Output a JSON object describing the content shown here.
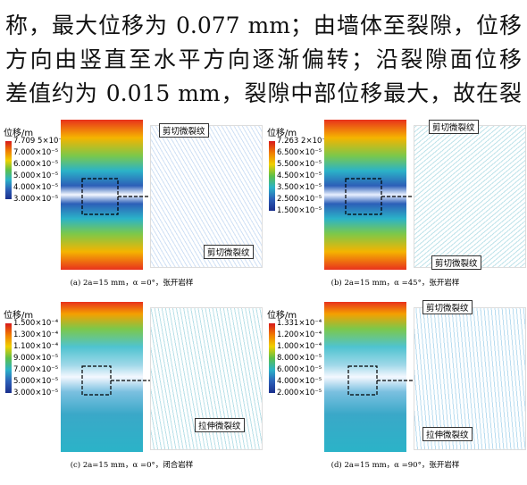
{
  "body_text": [
    "称，最大位移为 0.077 mm；由墙体至裂隙，位移",
    "方向由竖直至水平方向逐渐偏转；沿裂隙面位移",
    "差值约为 0.015 mm，裂隙中部位移最大，故在裂"
  ],
  "figures": [
    {
      "legend_title": "位移/m",
      "legend_ticks": [
        "7.709 5×10⁻⁵",
        "7.000×10⁻⁵",
        "6.000×10⁻⁵",
        "5.000×10⁻⁵",
        "4.000×10⁻⁵",
        "3.000×10⁻⁵"
      ],
      "annotations": [
        "剪切微裂纹",
        "剪切微裂纹"
      ],
      "caption": "(a) 2a=15 mm，α =0°，张开岩样"
    },
    {
      "legend_title": "位移/m",
      "legend_ticks": [
        "7.263 2×10⁻⁵",
        "6.500×10⁻⁵",
        "5.500×10⁻⁵",
        "4.500×10⁻⁵",
        "3.500×10⁻⁵",
        "2.500×10⁻⁵",
        "1.500×10⁻⁵"
      ],
      "annotations": [
        "剪切微裂纹",
        "剪切微裂纹"
      ],
      "caption": "(b) 2a=15 mm，α =45°，张开岩样"
    },
    {
      "legend_title": "位移/m",
      "legend_ticks": [
        "1.500×10⁻⁴",
        "1.300×10⁻⁴",
        "1.100×10⁻⁴",
        "9.000×10⁻⁵",
        "7.000×10⁻⁵",
        "5.000×10⁻⁵",
        "3.000×10⁻⁵"
      ],
      "annotations": [
        "拉伸微裂纹"
      ],
      "caption": "(c) 2a=15 mm，α =0°，闭合岩样"
    },
    {
      "legend_title": "位移/m",
      "legend_ticks": [
        "1.331×10⁻⁴",
        "1.200×10⁻⁴",
        "1.000×10⁻⁴",
        "8.000×10⁻⁵",
        "6.000×10⁻⁵",
        "4.000×10⁻⁵",
        "2.000×10⁻⁵"
      ],
      "annotations": [
        "剪切微裂纹",
        "拉伸微裂纹"
      ],
      "caption": "(d) 2a=15 mm，α =90°，张开岩样"
    }
  ]
}
